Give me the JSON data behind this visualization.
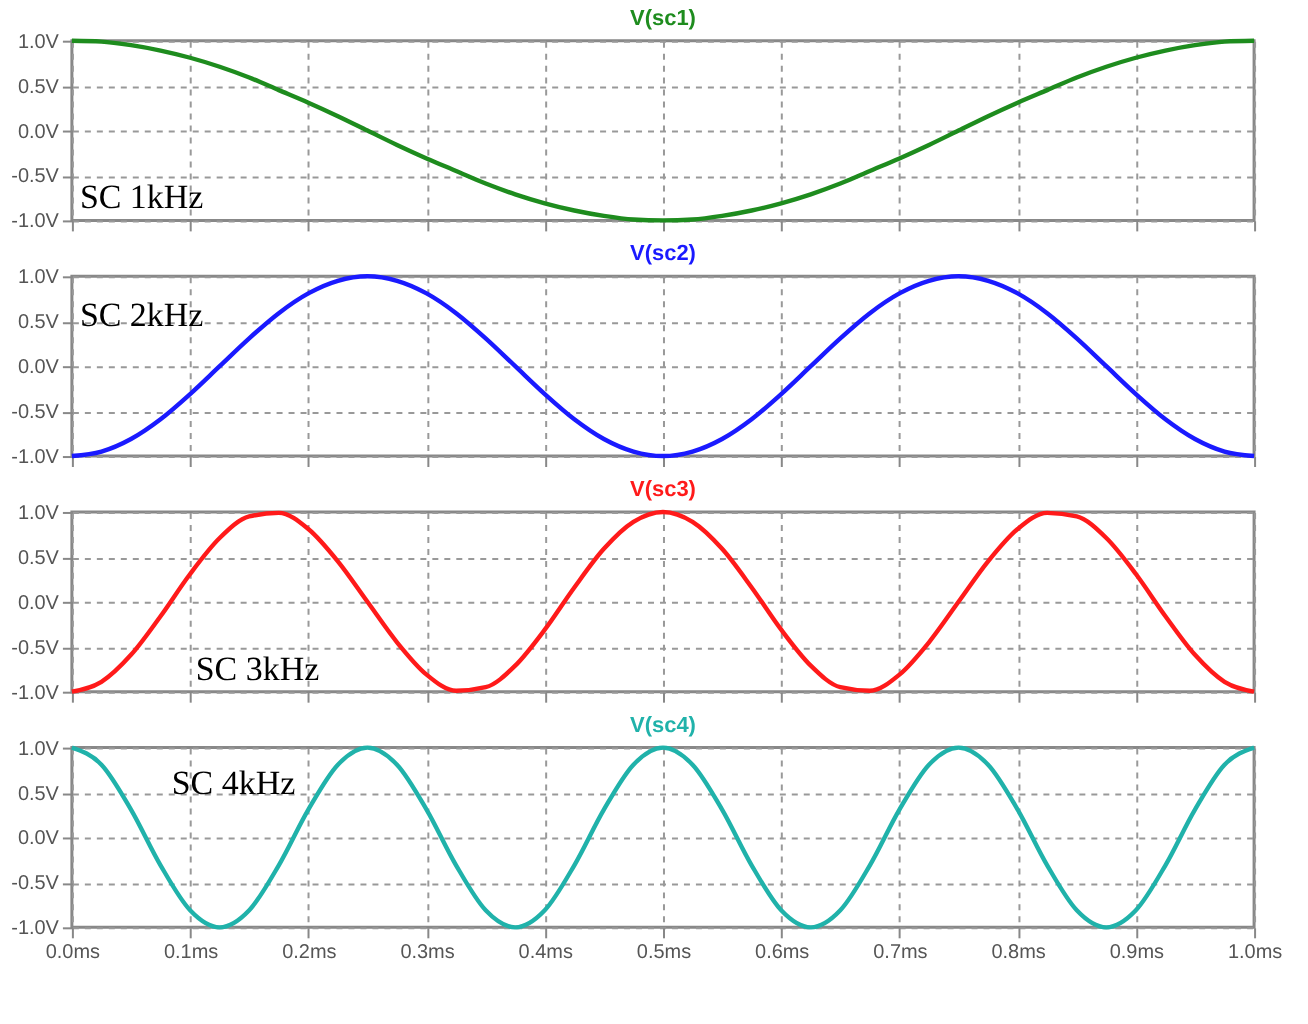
{
  "chart_data": [
    {
      "type": "line",
      "title": "V(sc1)",
      "annotations": [
        "SC 1kHz"
      ],
      "grid": true,
      "tick_labels": "y",
      "line_style": "solid",
      "xlim": [
        0,
        1
      ],
      "ylim": [
        -1,
        1
      ],
      "xticks": [
        {
          "value": 0,
          "label": null
        },
        {
          "value": 0.1,
          "label": null
        },
        {
          "value": 0.2,
          "label": null
        },
        {
          "value": 0.3,
          "label": null
        },
        {
          "value": 0.4,
          "label": null
        },
        {
          "value": 0.5,
          "label": null
        },
        {
          "value": 0.6,
          "label": null
        },
        {
          "value": 0.7,
          "label": null
        },
        {
          "value": 0.8,
          "label": null
        },
        {
          "value": 0.9,
          "label": null
        },
        {
          "value": 1,
          "label": null
        }
      ],
      "yticks": [
        {
          "value": -1,
          "label": "-1.0V"
        },
        {
          "value": -0.5,
          "label": "-0.5V"
        },
        {
          "value": 0,
          "label": "0.0V"
        },
        {
          "value": 0.5,
          "label": "0.5V"
        },
        {
          "value": 1,
          "label": "1.0V"
        }
      ],
      "x": [
        0,
        0.025,
        0.05,
        0.075,
        0.1,
        0.125,
        0.15,
        0.175,
        0.2,
        0.225,
        0.25,
        0.275,
        0.3,
        0.325,
        0.35,
        0.375,
        0.4,
        0.425,
        0.45,
        0.475,
        0.5,
        0.525,
        0.55,
        0.575,
        0.6,
        0.625,
        0.65,
        0.675,
        0.7,
        0.725,
        0.75,
        0.775,
        0.8,
        0.825,
        0.85,
        0.875,
        0.9,
        0.925,
        0.95,
        0.975,
        1
      ],
      "series": [
        {
          "color": "#1e8c1e",
          "values": [
            1,
            0.99,
            0.95,
            0.89,
            0.81,
            0.71,
            0.59,
            0.45,
            0.31,
            0.16,
            0,
            -0.16,
            -0.31,
            -0.45,
            -0.59,
            -0.71,
            -0.81,
            -0.89,
            -0.95,
            -0.99,
            -1,
            -0.99,
            -0.95,
            -0.89,
            -0.81,
            -0.71,
            -0.59,
            -0.45,
            -0.31,
            -0.16,
            0,
            0.16,
            0.31,
            0.45,
            0.59,
            0.71,
            0.81,
            0.89,
            0.95,
            0.99,
            1
          ]
        }
      ]
    },
    {
      "type": "line",
      "title": "V(sc2)",
      "annotations": [
        "SC 2kHz"
      ],
      "grid": true,
      "tick_labels": "y",
      "line_style": "solid",
      "xlim": [
        0,
        1
      ],
      "ylim": [
        -1,
        1
      ],
      "xticks": [
        {
          "value": 0,
          "label": null
        },
        {
          "value": 0.1,
          "label": null
        },
        {
          "value": 0.2,
          "label": null
        },
        {
          "value": 0.3,
          "label": null
        },
        {
          "value": 0.4,
          "label": null
        },
        {
          "value": 0.5,
          "label": null
        },
        {
          "value": 0.6,
          "label": null
        },
        {
          "value": 0.7,
          "label": null
        },
        {
          "value": 0.8,
          "label": null
        },
        {
          "value": 0.9,
          "label": null
        },
        {
          "value": 1,
          "label": null
        }
      ],
      "yticks": [
        {
          "value": -1,
          "label": "-1.0V"
        },
        {
          "value": -0.5,
          "label": "-0.5V"
        },
        {
          "value": 0,
          "label": "0.0V"
        },
        {
          "value": 0.5,
          "label": "0.5V"
        },
        {
          "value": 1,
          "label": "1.0V"
        }
      ],
      "x": [
        0,
        0.025,
        0.05,
        0.075,
        0.1,
        0.125,
        0.15,
        0.175,
        0.2,
        0.225,
        0.25,
        0.275,
        0.3,
        0.325,
        0.35,
        0.375,
        0.4,
        0.425,
        0.45,
        0.475,
        0.5,
        0.525,
        0.55,
        0.575,
        0.6,
        0.625,
        0.65,
        0.675,
        0.7,
        0.725,
        0.75,
        0.775,
        0.8,
        0.825,
        0.85,
        0.875,
        0.9,
        0.925,
        0.95,
        0.975,
        1
      ],
      "series": [
        {
          "color": "#1a1aff",
          "values": [
            -1,
            -0.95,
            -0.81,
            -0.59,
            -0.31,
            0,
            0.31,
            0.59,
            0.81,
            0.95,
            1,
            0.95,
            0.81,
            0.59,
            0.31,
            0,
            -0.31,
            -0.59,
            -0.81,
            -0.95,
            -1,
            -0.95,
            -0.81,
            -0.59,
            -0.31,
            0,
            0.31,
            0.59,
            0.81,
            0.95,
            1,
            0.95,
            0.81,
            0.59,
            0.31,
            0,
            -0.31,
            -0.59,
            -0.81,
            -0.95,
            -1
          ]
        }
      ]
    },
    {
      "type": "line",
      "title": "V(sc3)",
      "annotations": [
        "SC 3kHz"
      ],
      "grid": true,
      "tick_labels": "y",
      "line_style": "solid",
      "xlim": [
        0,
        1
      ],
      "ylim": [
        -1,
        1
      ],
      "xticks": [
        {
          "value": 0,
          "label": null
        },
        {
          "value": 0.1,
          "label": null
        },
        {
          "value": 0.2,
          "label": null
        },
        {
          "value": 0.3,
          "label": null
        },
        {
          "value": 0.4,
          "label": null
        },
        {
          "value": 0.5,
          "label": null
        },
        {
          "value": 0.6,
          "label": null
        },
        {
          "value": 0.7,
          "label": null
        },
        {
          "value": 0.8,
          "label": null
        },
        {
          "value": 0.9,
          "label": null
        },
        {
          "value": 1,
          "label": null
        }
      ],
      "yticks": [
        {
          "value": -1,
          "label": "-1.0V"
        },
        {
          "value": -0.5,
          "label": "-0.5V"
        },
        {
          "value": 0,
          "label": "0.0V"
        },
        {
          "value": 0.5,
          "label": "0.5V"
        },
        {
          "value": 1,
          "label": "1.0V"
        }
      ],
      "x": [
        0,
        0.025,
        0.05,
        0.075,
        0.1,
        0.125,
        0.15,
        0.175,
        0.2,
        0.225,
        0.25,
        0.275,
        0.3,
        0.325,
        0.35,
        0.375,
        0.4,
        0.425,
        0.45,
        0.475,
        0.5,
        0.525,
        0.55,
        0.575,
        0.6,
        0.625,
        0.65,
        0.675,
        0.7,
        0.725,
        0.75,
        0.775,
        0.8,
        0.825,
        0.85,
        0.875,
        0.9,
        0.925,
        0.95,
        0.975,
        1
      ],
      "series": [
        {
          "color": "#ff1a1a",
          "values": [
            -1,
            -0.89,
            -0.59,
            -0.16,
            0.31,
            0.71,
            0.95,
            0.99,
            0.81,
            0.45,
            0,
            -0.45,
            -0.81,
            -0.99,
            -0.95,
            -0.71,
            -0.31,
            0.16,
            0.59,
            0.89,
            1,
            0.89,
            0.59,
            0.16,
            -0.31,
            -0.71,
            -0.95,
            -0.99,
            -0.81,
            -0.45,
            0,
            0.45,
            0.81,
            0.99,
            0.95,
            0.71,
            0.31,
            -0.16,
            -0.59,
            -0.89,
            -1
          ]
        }
      ]
    },
    {
      "type": "line",
      "title": "V(sc4)",
      "annotations": [
        "SC 4kHz"
      ],
      "grid": true,
      "line_style": "solid",
      "xlim": [
        0,
        1
      ],
      "ylim": [
        -1,
        1
      ],
      "xticks": [
        {
          "value": 0,
          "label": "0.0ms"
        },
        {
          "value": 0.1,
          "label": "0.1ms"
        },
        {
          "value": 0.2,
          "label": "0.2ms"
        },
        {
          "value": 0.3,
          "label": "0.3ms"
        },
        {
          "value": 0.4,
          "label": "0.4ms"
        },
        {
          "value": 0.5,
          "label": "0.5ms"
        },
        {
          "value": 0.6,
          "label": "0.6ms"
        },
        {
          "value": 0.7,
          "label": "0.7ms"
        },
        {
          "value": 0.8,
          "label": "0.8ms"
        },
        {
          "value": 0.9,
          "label": "0.9ms"
        },
        {
          "value": 1,
          "label": "1.0ms"
        }
      ],
      "yticks": [
        {
          "value": -1,
          "label": "-1.0V"
        },
        {
          "value": -0.5,
          "label": "-0.5V"
        },
        {
          "value": 0,
          "label": "0.0V"
        },
        {
          "value": 0.5,
          "label": "0.5V"
        },
        {
          "value": 1,
          "label": "1.0V"
        }
      ],
      "x": [
        0,
        0.025,
        0.05,
        0.075,
        0.1,
        0.125,
        0.15,
        0.175,
        0.2,
        0.225,
        0.25,
        0.275,
        0.3,
        0.325,
        0.35,
        0.375,
        0.4,
        0.425,
        0.45,
        0.475,
        0.5,
        0.525,
        0.55,
        0.575,
        0.6,
        0.625,
        0.65,
        0.675,
        0.7,
        0.725,
        0.75,
        0.775,
        0.8,
        0.825,
        0.85,
        0.875,
        0.9,
        0.925,
        0.95,
        0.975,
        1
      ],
      "series": [
        {
          "color": "#20b2aa",
          "values": [
            1,
            0.81,
            0.31,
            -0.31,
            -0.81,
            -1,
            -0.81,
            -0.31,
            0.31,
            0.81,
            1,
            0.81,
            0.31,
            -0.31,
            -0.81,
            -1,
            -0.81,
            -0.31,
            0.31,
            0.81,
            1,
            0.81,
            0.31,
            -0.31,
            -0.81,
            -1,
            -0.81,
            -0.31,
            0.31,
            0.81,
            1,
            0.81,
            0.31,
            -0.31,
            -0.81,
            -1,
            -0.81,
            -0.31,
            0.31,
            0.81,
            1
          ]
        }
      ]
    }
  ]
}
